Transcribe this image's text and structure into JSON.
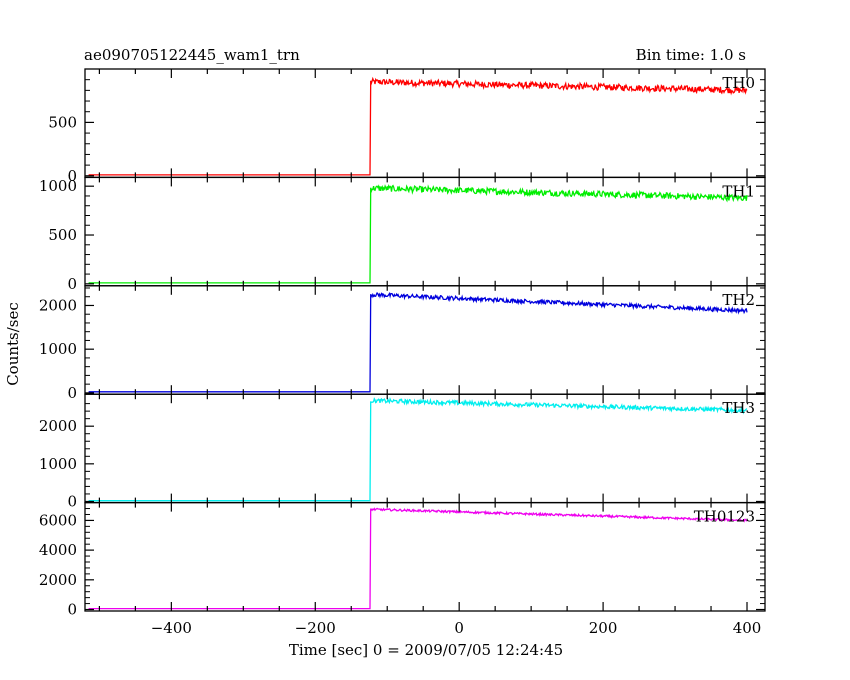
{
  "header": {
    "title": "ae090705122445_wam1_trn",
    "bin_time": "Bin time: 1.0 s"
  },
  "axis": {
    "xlabel": "Time [sec] 0 = 2009/07/05 12:24:45",
    "ylabel": "Counts/sec"
  },
  "chart_data": {
    "type": "line",
    "title": "ae090705122445_wam1_trn",
    "subtitle": "Bin time: 1.0 s",
    "xlabel": "Time [sec] 0 = 2009/07/05 12:24:45",
    "ylabel": "Counts/sec",
    "xlim": [
      -520,
      425
    ],
    "x_ticks": [
      -400,
      -200,
      0,
      200,
      400
    ],
    "onset_x": -123,
    "panels": [
      {
        "name": "TH0",
        "color": "#ff0000",
        "ylim": [
          -15,
          1000
        ],
        "y_ticks": [
          0,
          500
        ],
        "tick_labels": [
          "0",
          "500"
        ],
        "pre": 8,
        "peak": 880,
        "end": 800,
        "noise": 30
      },
      {
        "name": "TH1",
        "color": "#00ee00",
        "ylim": [
          -20,
          1090
        ],
        "y_ticks": [
          0,
          500,
          1000
        ],
        "tick_labels": [
          "0",
          "500",
          "1000"
        ],
        "pre": 10,
        "peak": 980,
        "end": 880,
        "noise": 32
      },
      {
        "name": "TH2",
        "color": "#0000dd",
        "ylim": [
          -30,
          2450
        ],
        "y_ticks": [
          0,
          1000,
          2000
        ],
        "tick_labels": [
          "0",
          "1000",
          "2000"
        ],
        "pre": 25,
        "peak": 2250,
        "end": 1880,
        "noise": 45
      },
      {
        "name": "TH3",
        "color": "#00eeee",
        "ylim": [
          -30,
          2850
        ],
        "y_ticks": [
          0,
          1000,
          2000
        ],
        "tick_labels": [
          "0",
          "1000",
          "2000"
        ],
        "pre": 20,
        "peak": 2680,
        "end": 2420,
        "noise": 55
      },
      {
        "name": "TH0123",
        "color": "#ee00ee",
        "ylim": [
          -100,
          7200
        ],
        "y_ticks": [
          0,
          2000,
          4000,
          6000
        ],
        "tick_labels": [
          "0",
          "2000",
          "4000",
          "6000"
        ],
        "pre": 60,
        "peak": 6750,
        "end": 6000,
        "noise": 70
      }
    ]
  }
}
